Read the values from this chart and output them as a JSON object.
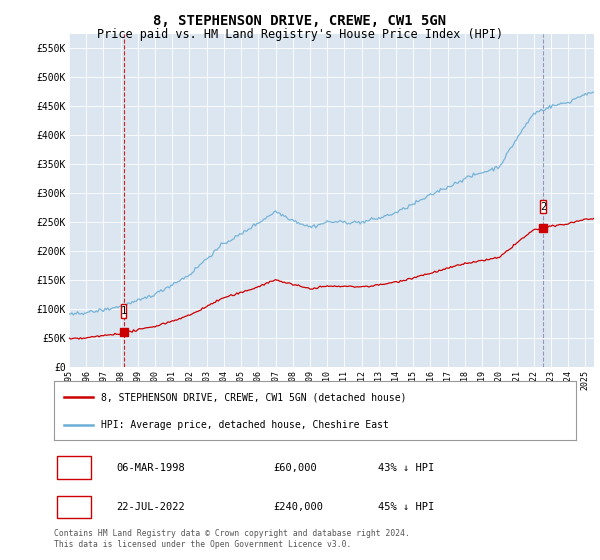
{
  "title": "8, STEPHENSON DRIVE, CREWE, CW1 5GN",
  "subtitle": "Price paid vs. HM Land Registry's House Price Index (HPI)",
  "plot_bg_color": "#dce6f0",
  "ylim": [
    0,
    575000
  ],
  "yticks": [
    0,
    50000,
    100000,
    150000,
    200000,
    250000,
    300000,
    350000,
    400000,
    450000,
    500000,
    550000
  ],
  "ytick_labels": [
    "£0",
    "£50K",
    "£100K",
    "£150K",
    "£200K",
    "£250K",
    "£300K",
    "£350K",
    "£400K",
    "£450K",
    "£500K",
    "£550K"
  ],
  "xlim_start": 1995.0,
  "xlim_end": 2025.5,
  "xticks": [
    1995,
    1996,
    1997,
    1998,
    1999,
    2000,
    2001,
    2002,
    2003,
    2004,
    2005,
    2006,
    2007,
    2008,
    2009,
    2010,
    2011,
    2012,
    2013,
    2014,
    2015,
    2016,
    2017,
    2018,
    2019,
    2020,
    2021,
    2022,
    2023,
    2024,
    2025
  ],
  "hpi_color": "#6baed6",
  "property_color": "#cc0000",
  "sale1_x": 1998.17,
  "sale1_y": 60000,
  "sale2_x": 2022.55,
  "sale2_y": 240000,
  "legend_label_property": "8, STEPHENSON DRIVE, CREWE, CW1 5GN (detached house)",
  "legend_label_hpi": "HPI: Average price, detached house, Cheshire East",
  "transaction1": [
    "1",
    "06-MAR-1998",
    "£60,000",
    "43% ↓ HPI"
  ],
  "transaction2": [
    "2",
    "22-JUL-2022",
    "£240,000",
    "45% ↓ HPI"
  ],
  "footnote": "Contains HM Land Registry data © Crown copyright and database right 2024.\nThis data is licensed under the Open Government Licence v3.0."
}
